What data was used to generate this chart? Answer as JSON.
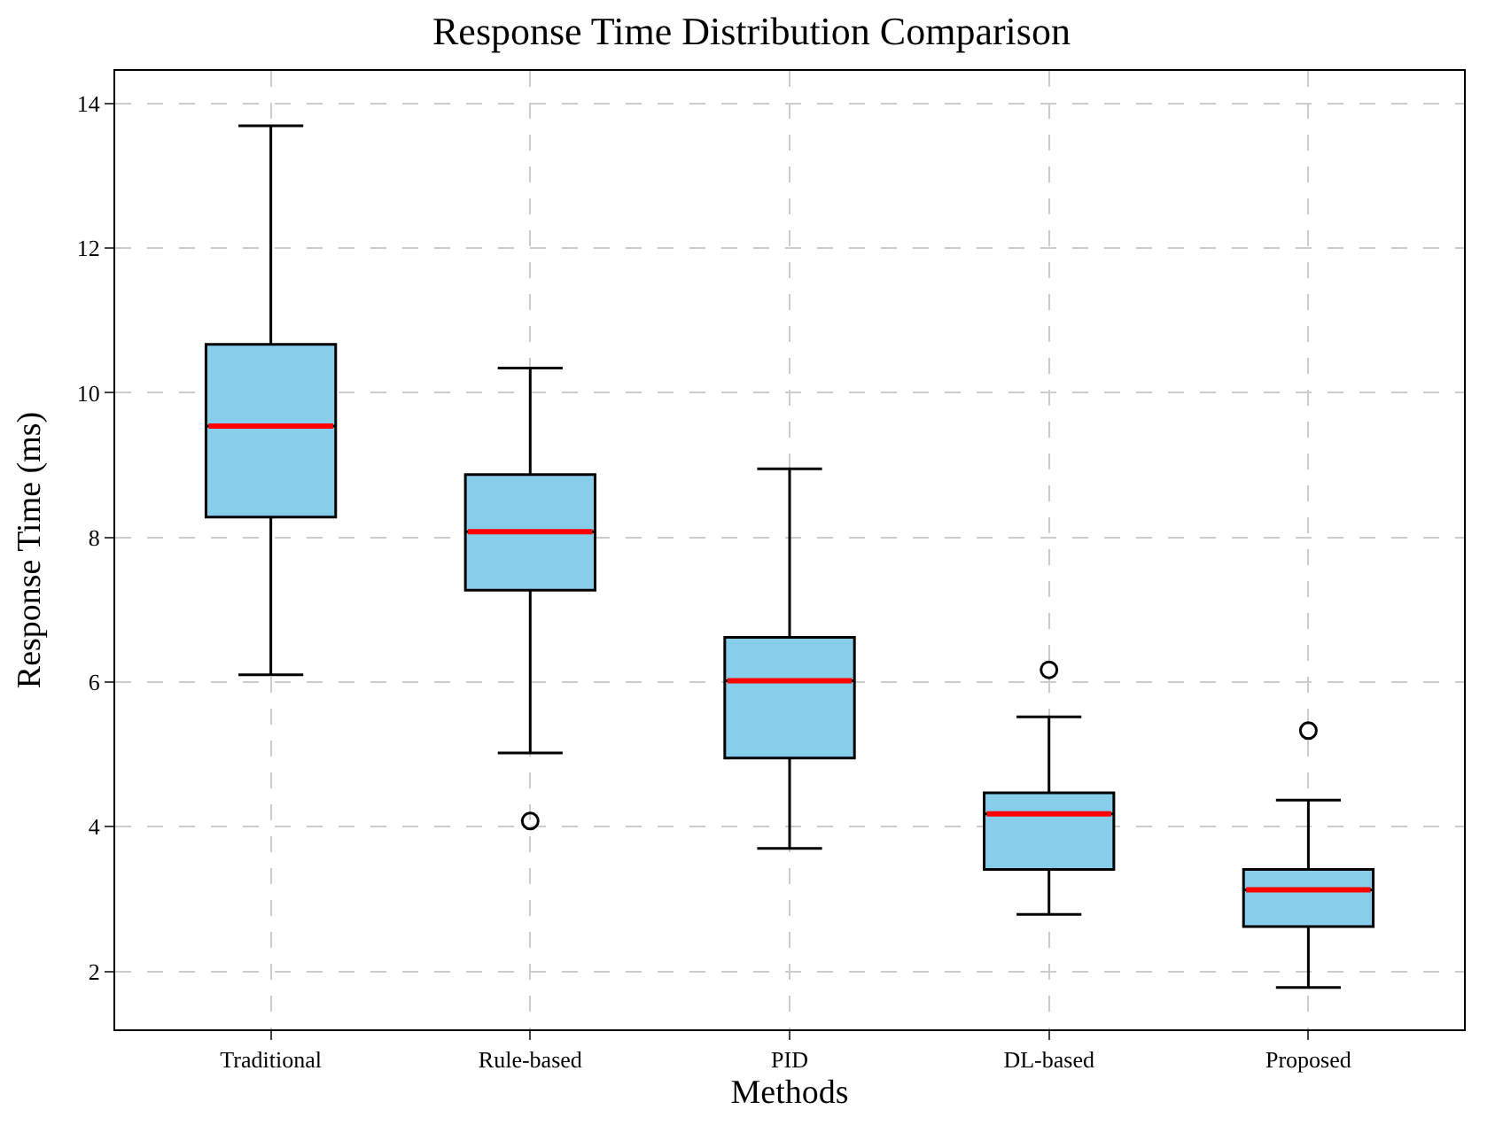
{
  "chart_data": {
    "type": "box",
    "title": "Response Time Distribution Comparison",
    "xlabel": "Methods",
    "ylabel": "Response Time (ms)",
    "categories": [
      "Traditional",
      "Rule-based",
      "PID",
      "DL-based",
      "Proposed"
    ],
    "boxes": [
      {
        "low": 6.1,
        "q1": 8.28,
        "median": 9.54,
        "q3": 10.67,
        "high": 13.69
      },
      {
        "low": 5.02,
        "q1": 7.27,
        "median": 8.08,
        "q3": 8.87,
        "high": 10.34,
        "outliers": [
          4.08
        ]
      },
      {
        "low": 3.7,
        "q1": 4.95,
        "median": 6.02,
        "q3": 6.62,
        "high": 8.95
      },
      {
        "low": 2.79,
        "q1": 3.41,
        "median": 4.18,
        "q3": 4.47,
        "high": 5.52,
        "outliers": [
          6.17
        ]
      },
      {
        "low": 1.78,
        "q1": 2.62,
        "median": 3.13,
        "q3": 3.41,
        "high": 4.37,
        "outliers": [
          5.33
        ]
      }
    ],
    "color": "#87ceeb",
    "ylim": [
      1.2,
      14.45
    ],
    "yticks": [
      2,
      4,
      6,
      8,
      10,
      12,
      14
    ],
    "grid": true
  }
}
